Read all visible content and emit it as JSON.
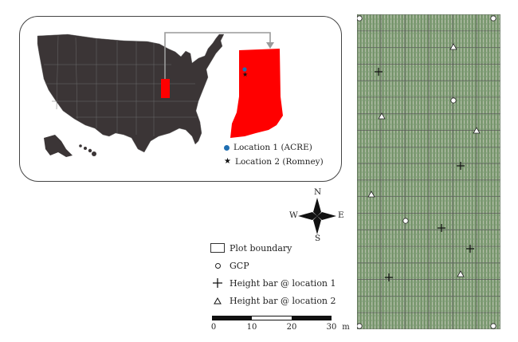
{
  "inset": {
    "legend": [
      {
        "label": "Location 1 (ACRE)",
        "symbol": "blue-dot",
        "color": "#1f6fb2"
      },
      {
        "label": "Location 2 (Romney)",
        "symbol": "star"
      }
    ],
    "colors": {
      "usa": "#3b3536",
      "indiana": "#ff0000",
      "arrow": "#9a9a9a"
    }
  },
  "compass": {
    "north": "N",
    "south": "S",
    "east": "E",
    "west": "W"
  },
  "legend": {
    "items": [
      {
        "label": "Plot boundary",
        "symbol": "square"
      },
      {
        "label": "GCP",
        "symbol": "circle"
      },
      {
        "label": "Height bar @ location 1",
        "symbol": "plus"
      },
      {
        "label": "Height bar @ location 2",
        "symbol": "triangle"
      }
    ]
  },
  "scale_bar": {
    "ticks": [
      "0",
      "10",
      "20",
      "30"
    ],
    "unit": "m"
  }
}
